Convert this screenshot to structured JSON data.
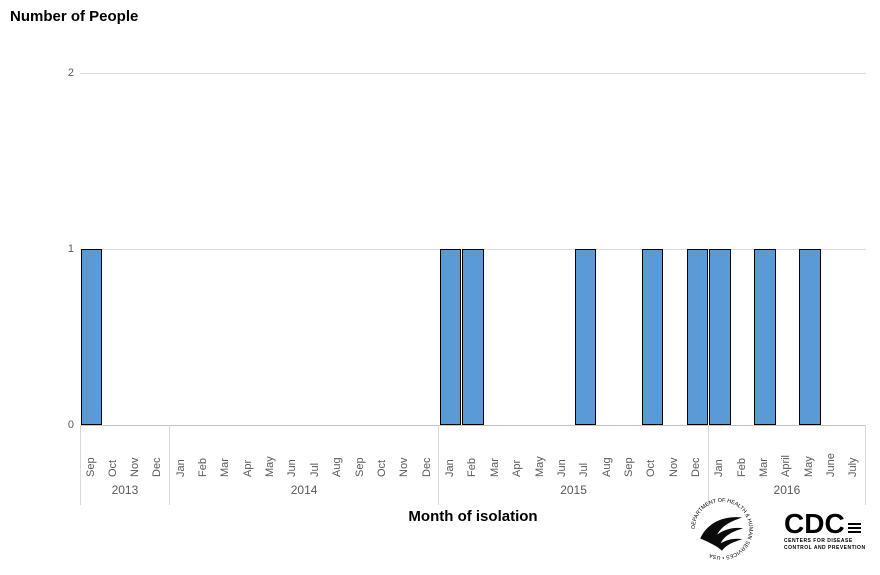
{
  "chart_data": {
    "type": "bar",
    "title": "Number of People",
    "xlabel": "Month of isolation",
    "ylabel": "Number of People",
    "ylim": [
      0,
      2
    ],
    "yticks": [
      0,
      1,
      2
    ],
    "grid": true,
    "legend": "none",
    "bar_color": "#5B9BD5",
    "bar_border": "#000000",
    "groups": [
      {
        "year": "2013",
        "months": [
          "Sep",
          "Oct",
          "Nov",
          "Dec"
        ],
        "values": [
          1,
          0,
          0,
          0
        ]
      },
      {
        "year": "2014",
        "months": [
          "Jan",
          "Feb",
          "Mar",
          "Apr",
          "May",
          "Jun",
          "Jul",
          "Aug",
          "Sep",
          "Oct",
          "Nov",
          "Dec"
        ],
        "values": [
          0,
          0,
          0,
          0,
          0,
          0,
          0,
          0,
          0,
          0,
          0,
          0
        ]
      },
      {
        "year": "2015",
        "months": [
          "Jan",
          "Feb",
          "Mar",
          "Apr",
          "May",
          "Jun",
          "Jul",
          "Aug",
          "Sep",
          "Oct",
          "Nov",
          "Dec"
        ],
        "values": [
          1,
          1,
          0,
          0,
          0,
          0,
          1,
          0,
          0,
          1,
          0,
          1
        ]
      },
      {
        "year": "2016",
        "months": [
          "Jan",
          "Feb",
          "Mar",
          "April",
          "May",
          "June",
          "July"
        ],
        "values": [
          1,
          0,
          1,
          0,
          1,
          0,
          0
        ]
      }
    ]
  },
  "footer": {
    "hhs_text": "DEPARTMENT OF HEALTH & HUMAN SERVICES • USA",
    "cdc_label": "CDC",
    "cdc_line1": "CENTERS FOR DISEASE",
    "cdc_line2": "CONTROL AND PREVENTION"
  }
}
